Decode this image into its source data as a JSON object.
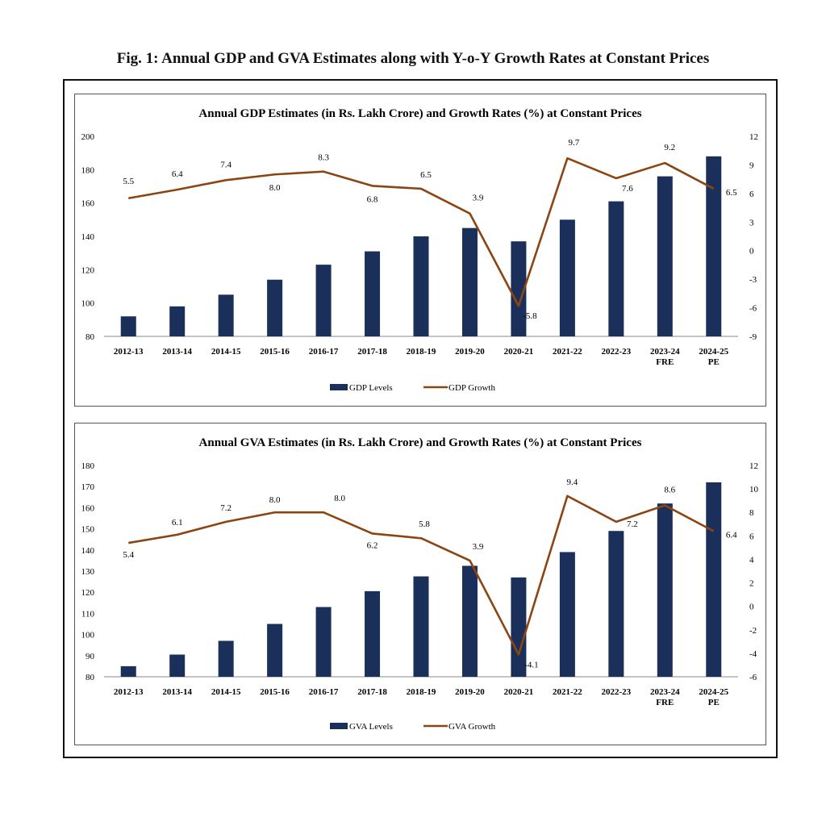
{
  "figure_title": "Fig. 1: Annual GDP and GVA Estimates along with Y-o-Y Growth Rates at Constant Prices",
  "colors": {
    "bar": "#1a2f5a",
    "line": "#8b4513",
    "axis": "#888888"
  },
  "chart_data": [
    {
      "type": "bar",
      "title": "Annual GDP Estimates (in Rs. Lakh Crore) and Growth Rates (%) at Constant Prices",
      "categories": [
        [
          "2012-13"
        ],
        [
          "2013-14"
        ],
        [
          "2014-15"
        ],
        [
          "2015-16"
        ],
        [
          "2016-17"
        ],
        [
          "2017-18"
        ],
        [
          "2018-19"
        ],
        [
          "2019-20"
        ],
        [
          "2020-21"
        ],
        [
          "2021-22"
        ],
        [
          "2022-23"
        ],
        [
          "2023-24",
          "FRE"
        ],
        [
          "2024-25",
          "PE"
        ]
      ],
      "series": [
        {
          "name": "GDP Levels",
          "type": "bar",
          "axis": "left",
          "values": [
            92,
            98,
            105,
            114,
            123,
            131,
            140,
            145,
            137,
            150,
            161,
            176,
            188
          ]
        },
        {
          "name": "GDP Growth",
          "type": "line",
          "axis": "right",
          "values": [
            5.5,
            6.4,
            7.4,
            8.0,
            8.3,
            6.8,
            6.5,
            3.9,
            -5.8,
            9.7,
            7.6,
            9.2,
            6.5
          ]
        }
      ],
      "ylim_left": [
        80,
        200
      ],
      "yticks_left": [
        80,
        100,
        120,
        140,
        160,
        180,
        200
      ],
      "ylim_right": [
        -9,
        12
      ],
      "yticks_right": [
        -9,
        -6,
        -3,
        0,
        3,
        6,
        9,
        12
      ],
      "legend_position": "bottom-center"
    },
    {
      "type": "bar",
      "title": "Annual GVA Estimates (in Rs. Lakh Crore) and Growth Rates (%) at Constant Prices",
      "categories": [
        [
          "2012-13"
        ],
        [
          "2013-14"
        ],
        [
          "2014-15"
        ],
        [
          "2015-16"
        ],
        [
          "2016-17"
        ],
        [
          "2017-18"
        ],
        [
          "2018-19"
        ],
        [
          "2019-20"
        ],
        [
          "2020-21"
        ],
        [
          "2021-22"
        ],
        [
          "2022-23"
        ],
        [
          "2023-24",
          "FRE"
        ],
        [
          "2024-25",
          "PE"
        ]
      ],
      "series": [
        {
          "name": "GVA Levels",
          "type": "bar",
          "axis": "left",
          "values": [
            85,
            90.5,
            97,
            105,
            113,
            120.5,
            127.5,
            132.5,
            127,
            139,
            149,
            162,
            172
          ]
        },
        {
          "name": "GVA Growth",
          "type": "line",
          "axis": "right",
          "values": [
            5.4,
            6.1,
            7.2,
            8.0,
            8.0,
            6.2,
            5.8,
            3.9,
            -4.1,
            9.4,
            7.2,
            8.6,
            6.4
          ]
        }
      ],
      "ylim_left": [
        80,
        180
      ],
      "yticks_left": [
        80,
        90,
        100,
        110,
        120,
        130,
        140,
        150,
        160,
        170,
        180
      ],
      "ylim_right": [
        -6,
        12
      ],
      "yticks_right": [
        -6,
        -4,
        -2,
        0,
        2,
        4,
        6,
        8,
        10,
        12
      ],
      "legend_position": "bottom-center"
    }
  ]
}
